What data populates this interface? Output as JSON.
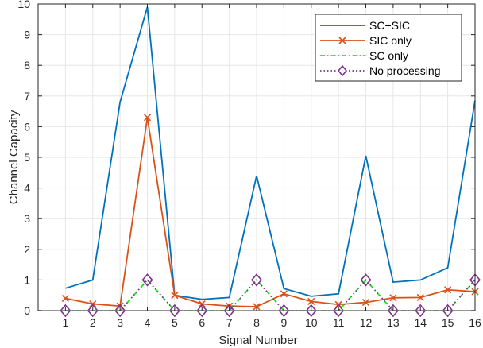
{
  "chart_data": {
    "type": "line",
    "title": "",
    "xlabel": "Signal Number",
    "ylabel": "Channel Capacity",
    "xlim": [
      0,
      16
    ],
    "ylim": [
      0,
      10
    ],
    "x": [
      1,
      2,
      3,
      4,
      5,
      6,
      7,
      8,
      9,
      10,
      11,
      12,
      13,
      14,
      15,
      16
    ],
    "xticks": [
      "1",
      "2",
      "3",
      "4",
      "5",
      "6",
      "7",
      "8",
      "9",
      "10",
      "11",
      "12",
      "13",
      "14",
      "15",
      "16"
    ],
    "yticks": [
      "0",
      "1",
      "2",
      "3",
      "4",
      "5",
      "6",
      "7",
      "8",
      "9",
      "10"
    ],
    "grid": true,
    "legend_position": "upper right",
    "series": [
      {
        "name": "SC+SIC",
        "color": "#0072BD",
        "line_style": "solid",
        "marker": "none",
        "values": [
          0.73,
          1.0,
          6.8,
          9.9,
          0.5,
          0.37,
          0.43,
          4.4,
          0.72,
          0.47,
          0.55,
          5.05,
          0.93,
          1.0,
          1.4,
          6.85
        ]
      },
      {
        "name": "SIC only",
        "color": "#D95319",
        "line_style": "solid",
        "marker": "x",
        "values": [
          0.4,
          0.22,
          0.15,
          6.3,
          0.5,
          0.22,
          0.15,
          0.13,
          0.55,
          0.3,
          0.2,
          0.27,
          0.42,
          0.43,
          0.68,
          0.62
        ]
      },
      {
        "name": "SC only",
        "color": "#00FF00",
        "line_style": "dashdot",
        "marker": "none",
        "values": [
          0,
          0,
          0,
          1,
          0,
          0,
          0,
          1,
          0,
          0,
          0,
          1,
          0,
          0,
          0,
          1
        ]
      },
      {
        "name": "No processing",
        "color": "#7E2F8E",
        "line_style": "dotted",
        "marker": "diamond",
        "values": [
          0,
          0,
          0,
          1,
          0,
          0,
          0,
          1,
          0,
          0,
          0,
          1,
          0,
          0,
          0,
          1
        ]
      }
    ]
  }
}
